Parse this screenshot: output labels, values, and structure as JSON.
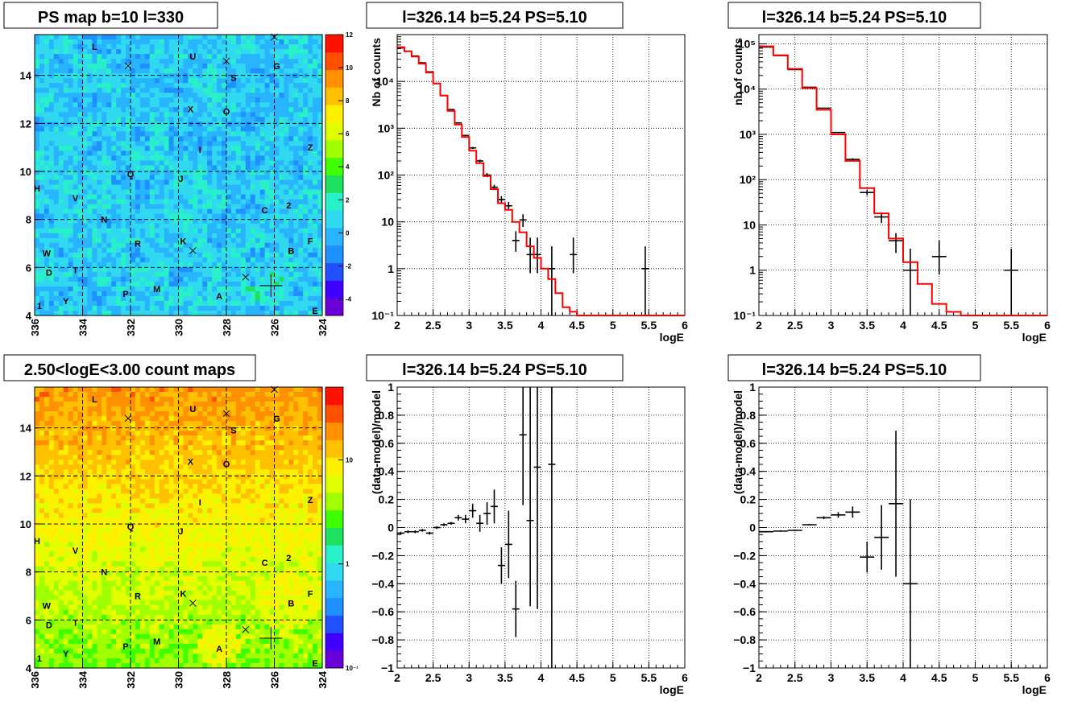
{
  "colors": {
    "data": "#000000",
    "model": "#ff0000",
    "grid": "#000000",
    "palette": [
      "#6a00d8",
      "#4000ff",
      "#2050ff",
      "#1e90ff",
      "#28b4ff",
      "#30d8f0",
      "#28f0c8",
      "#20e060",
      "#40ff00",
      "#a0ff00",
      "#e0ff00",
      "#fff000",
      "#ffc000",
      "#ff9000",
      "#ff5000",
      "#ff1000"
    ]
  },
  "map_common": {
    "xaxis": {
      "range": [
        336,
        324
      ],
      "ticks": [
        "336",
        "334",
        "332",
        "330",
        "328",
        "326",
        "324"
      ]
    },
    "yaxis": {
      "range": [
        4,
        15.7
      ],
      "ticks": [
        "4",
        "6",
        "8",
        "10",
        "12",
        "14"
      ]
    },
    "sources": [
      {
        "label": "L",
        "l": 333.5,
        "b": 15.2
      },
      {
        "label": "U",
        "l": 329.4,
        "b": 14.8
      },
      {
        "label": "G",
        "l": 325.9,
        "b": 14.4
      },
      {
        "label": "S",
        "l": 327.7,
        "b": 13.9
      },
      {
        "label": "X",
        "l": 329.5,
        "b": 12.6
      },
      {
        "label": "O",
        "l": 328.0,
        "b": 12.5
      },
      {
        "label": "Z",
        "l": 324.5,
        "b": 11.0
      },
      {
        "label": "I",
        "l": 329.1,
        "b": 10.9
      },
      {
        "label": "Q",
        "l": 332.0,
        "b": 9.9
      },
      {
        "label": "J",
        "l": 329.9,
        "b": 9.7
      },
      {
        "label": "H",
        "l": 335.9,
        "b": 9.3
      },
      {
        "label": "V",
        "l": 334.3,
        "b": 8.9
      },
      {
        "label": "C",
        "l": 326.4,
        "b": 8.4
      },
      {
        "label": "2",
        "l": 325.4,
        "b": 8.6
      },
      {
        "label": "N",
        "l": 333.1,
        "b": 8.0
      },
      {
        "label": "R",
        "l": 331.7,
        "b": 7.0
      },
      {
        "label": "K",
        "l": 329.8,
        "b": 7.1
      },
      {
        "label": "F",
        "l": 324.5,
        "b": 7.1
      },
      {
        "label": "B",
        "l": 325.3,
        "b": 6.7
      },
      {
        "label": "W",
        "l": 335.5,
        "b": 6.6
      },
      {
        "label": "D",
        "l": 335.4,
        "b": 5.8
      },
      {
        "label": "T",
        "l": 334.3,
        "b": 5.9
      },
      {
        "label": "P",
        "l": 332.2,
        "b": 4.9
      },
      {
        "label": "M",
        "l": 330.9,
        "b": 5.1
      },
      {
        "label": "A",
        "l": 328.3,
        "b": 4.8
      },
      {
        "label": "Y",
        "l": 334.7,
        "b": 4.6
      },
      {
        "label": "1",
        "l": 335.8,
        "b": 4.4
      },
      {
        "label": "E",
        "l": 324.3,
        "b": 4.2
      }
    ],
    "crosses": [
      {
        "l": 332.1,
        "b": 14.4
      },
      {
        "l": 328.0,
        "b": 14.6
      },
      {
        "l": 326.0,
        "b": 15.6
      },
      {
        "l": 329.4,
        "b": 6.7
      },
      {
        "l": 327.2,
        "b": 5.6
      }
    ],
    "target": {
      "l": 326.14,
      "b": 5.24
    }
  },
  "chart_data": [
    {
      "type": "heatmap",
      "title": "PS map b=10 l=330",
      "xlabel": "",
      "ylabel": "",
      "xlim": [
        336,
        324
      ],
      "ylim": [
        4,
        15.7
      ],
      "colorbar": {
        "scale": "linear",
        "range": [
          -5,
          12
        ],
        "ticks": [
          "-4",
          "-2",
          "0",
          "2",
          "4",
          "6",
          "8",
          "10",
          "12"
        ]
      },
      "grid": true
    },
    {
      "type": "line",
      "title": "l=326.14 b=5.24 PS=5.10",
      "xlabel": "logE",
      "ylabel": "Nb of counts",
      "xlim": [
        2,
        6
      ],
      "ylim": [
        0.1,
        100000
      ],
      "yscale": "log",
      "xticks": [
        "2",
        "2.5",
        "3",
        "3.5",
        "4",
        "4.5",
        "5",
        "5.5",
        "6"
      ],
      "yticks": [
        "10⁻¹",
        "1",
        "10",
        "10²",
        "10³",
        "10⁴"
      ],
      "grid": true,
      "series": [
        {
          "style": "errorbars",
          "bin_width": 0.1,
          "x": [
            2.05,
            2.15,
            2.25,
            2.35,
            2.45,
            2.55,
            2.65,
            2.75,
            2.85,
            2.95,
            3.05,
            3.15,
            3.25,
            3.35,
            3.45,
            3.55,
            3.65,
            3.75,
            3.85,
            3.95,
            4.15,
            4.45,
            5.45
          ],
          "y": [
            52000,
            44000,
            35000,
            25000,
            16000,
            9000,
            5000,
            2500,
            1300,
            700,
            380,
            200,
            100,
            55,
            30,
            22,
            4,
            11,
            2,
            2,
            1,
            2,
            1
          ],
          "ylow": [
            51700,
            43700,
            34700,
            24800,
            15800,
            8900,
            4900,
            2450,
            1260,
            675,
            360,
            186,
            90,
            48,
            25,
            17.4,
            2.3,
            7.8,
            0.8,
            0.8,
            0.1,
            0.8,
            0.1
          ],
          "yhigh": [
            52300,
            44300,
            35300,
            25200,
            16200,
            9100,
            5100,
            2550,
            1340,
            725,
            400,
            214,
            110,
            62,
            35.5,
            26.7,
            6.3,
            14.5,
            4.6,
            4.6,
            3,
            4.6,
            3
          ]
        },
        {
          "style": "step",
          "bin_width": 0.1,
          "x": [
            2.0,
            2.1,
            2.2,
            2.3,
            2.4,
            2.5,
            2.6,
            2.7,
            2.8,
            2.9,
            3.0,
            3.1,
            3.2,
            3.3,
            3.4,
            3.5,
            3.6,
            3.7,
            3.8,
            3.9,
            4.0,
            4.1,
            4.2,
            4.3,
            4.4,
            4.5,
            4.6,
            4.7,
            4.8,
            4.9,
            5.0,
            5.1,
            5.2,
            5.3,
            5.4,
            5.5,
            5.6,
            5.7,
            5.8,
            5.9
          ],
          "y": [
            54000,
            44000,
            34000,
            24000,
            15500,
            9000,
            5000,
            2350,
            1200,
            650,
            330,
            180,
            95,
            50,
            25,
            18,
            10,
            6,
            3,
            1.7,
            1,
            0.6,
            0.3,
            0.15,
            0.12,
            0.1,
            0.1,
            0.1,
            0.1,
            0.1,
            0.1,
            0.1,
            0.1,
            0.1,
            0.1,
            0.1,
            0.1,
            0.1,
            0.1,
            0.1
          ]
        }
      ]
    },
    {
      "type": "line",
      "title": "l=326.14 b=5.24 PS=5.10",
      "xlabel": "logE",
      "ylabel": "nb of counts",
      "xlim": [
        2,
        6
      ],
      "ylim": [
        0.1,
        160000
      ],
      "yscale": "log",
      "xticks": [
        "2",
        "2.5",
        "3",
        "3.5",
        "4",
        "4.5",
        "5",
        "5.5",
        "6"
      ],
      "yticks": [
        "10⁻¹",
        "1",
        "10",
        "10²",
        "10³",
        "10⁴",
        "10⁵"
      ],
      "grid": true,
      "series": [
        {
          "style": "errorbars",
          "bin_width": 0.2,
          "x": [
            2.1,
            2.3,
            2.5,
            2.7,
            2.9,
            3.1,
            3.3,
            3.5,
            3.7,
            3.9,
            4.1,
            4.5,
            5.5
          ],
          "y": [
            85000,
            55000,
            27000,
            11000,
            3800,
            1100,
            280,
            52,
            15,
            4.5,
            1,
            2,
            1
          ],
          "ylow": [
            84700,
            54800,
            26800,
            10900,
            3740,
            1070,
            263,
            45,
            11,
            2.4,
            0.1,
            0.8,
            0.1
          ],
          "yhigh": [
            85300,
            55200,
            27200,
            11100,
            3860,
            1130,
            297,
            59,
            19,
            6.6,
            3,
            4.6,
            3
          ]
        },
        {
          "style": "step",
          "bin_width": 0.2,
          "x": [
            2.0,
            2.2,
            2.4,
            2.6,
            2.8,
            3.0,
            3.2,
            3.4,
            3.6,
            3.8,
            4.0,
            4.2,
            4.4,
            4.6,
            4.8,
            5.0,
            5.2,
            5.4,
            5.6,
            5.8
          ],
          "y": [
            88000,
            56000,
            28000,
            10500,
            3500,
            1000,
            260,
            65,
            18,
            5,
            1.5,
            0.5,
            0.18,
            0.12,
            0.1,
            0.1,
            0.1,
            0.1,
            0.1,
            0.1
          ]
        }
      ]
    },
    {
      "type": "heatmap",
      "title": "2.50<logE<3.00 count maps",
      "xlabel": "",
      "ylabel": "",
      "xlim": [
        336,
        324
      ],
      "ylim": [
        4,
        15.7
      ],
      "colorbar": {
        "scale": "log",
        "range": [
          0.1,
          50
        ],
        "ticks": [
          "10⁻¹",
          "1",
          "10"
        ]
      },
      "grid": true
    },
    {
      "type": "scatter",
      "title": "l=326.14 b=5.24 PS=5.10",
      "xlabel": "logE",
      "ylabel": "(data-model)/model",
      "xlim": [
        2,
        6
      ],
      "ylim": [
        -1,
        1
      ],
      "xticks": [
        "2",
        "2.5",
        "3",
        "3.5",
        "4",
        "4.5",
        "5",
        "5.5",
        "6"
      ],
      "yticks": [
        "−1",
        "−0.8",
        "−0.6",
        "−0.4",
        "−0.2",
        "0",
        "0.2",
        "0.4",
        "0.6",
        "0.8",
        "1"
      ],
      "grid": true,
      "series": [
        {
          "style": "errorbars",
          "bin_width": 0.1,
          "x": [
            2.05,
            2.15,
            2.25,
            2.35,
            2.45,
            2.55,
            2.65,
            2.75,
            2.85,
            2.95,
            3.05,
            3.15,
            3.25,
            3.35,
            3.45,
            3.55,
            3.65,
            3.75,
            3.85,
            3.95,
            4.15
          ],
          "y": [
            -0.04,
            -0.03,
            -0.03,
            -0.02,
            -0.04,
            0.0,
            0.02,
            0.03,
            0.07,
            0.06,
            0.12,
            0.03,
            0.1,
            0.15,
            -0.27,
            -0.12,
            -0.58,
            0.66,
            0.05,
            0.43,
            0.45
          ],
          "ylow": [
            -0.05,
            -0.04,
            -0.04,
            -0.03,
            -0.05,
            -0.01,
            0.01,
            0.02,
            0.05,
            0.03,
            0.07,
            -0.03,
            0.02,
            0.03,
            -0.4,
            -0.36,
            -0.78,
            0.16,
            -0.56,
            -0.58,
            -1.0
          ],
          "yhigh": [
            -0.03,
            -0.02,
            -0.02,
            -0.01,
            -0.03,
            0.01,
            0.03,
            0.04,
            0.09,
            0.09,
            0.17,
            0.09,
            0.18,
            0.27,
            -0.14,
            0.12,
            -0.38,
            1.0,
            1.0,
            1.0,
            1.0
          ]
        }
      ]
    },
    {
      "type": "scatter",
      "title": "l=326.14 b=5.24 PS=5.10",
      "xlabel": "logE",
      "ylabel": "(data-model)/model",
      "xlim": [
        2,
        6
      ],
      "ylim": [
        -1,
        1
      ],
      "xticks": [
        "2",
        "2.5",
        "3",
        "3.5",
        "4",
        "4.5",
        "5",
        "5.5",
        "6"
      ],
      "yticks": [
        "−1",
        "−0.8",
        "−0.6",
        "−0.4",
        "−0.2",
        "0",
        "0.2",
        "0.4",
        "0.6",
        "0.8",
        "1"
      ],
      "grid": true,
      "series": [
        {
          "style": "errorbars",
          "bin_width": 0.2,
          "x": [
            2.1,
            2.3,
            2.5,
            2.7,
            2.9,
            3.1,
            3.3,
            3.5,
            3.7,
            3.9,
            4.1
          ],
          "y": [
            -0.03,
            -0.025,
            -0.02,
            0.02,
            0.07,
            0.09,
            0.11,
            -0.21,
            -0.07,
            0.17,
            -0.4
          ],
          "ylow": [
            -0.035,
            -0.03,
            -0.025,
            0.015,
            0.06,
            0.07,
            0.07,
            -0.32,
            -0.3,
            -0.35,
            -1.0
          ],
          "yhigh": [
            -0.025,
            -0.02,
            -0.015,
            0.025,
            0.08,
            0.11,
            0.15,
            -0.1,
            0.16,
            0.69,
            0.2
          ]
        }
      ]
    }
  ]
}
